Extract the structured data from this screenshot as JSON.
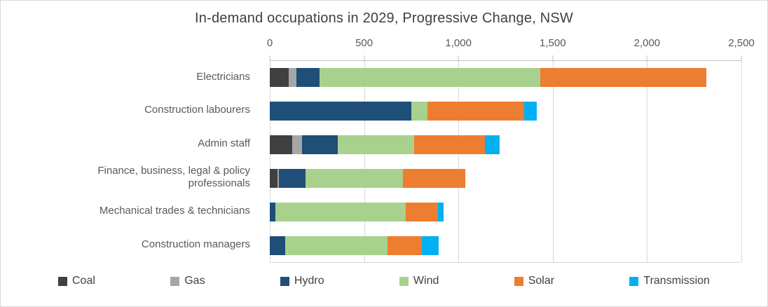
{
  "chart_data": {
    "type": "bar",
    "orientation": "horizontal",
    "stacked": true,
    "title": "In-demand occupations in 2029, Progressive Change, NSW",
    "categories": [
      "Electricians",
      "Construction labourers",
      "Admin staff",
      "Finance, business, legal & policy professionals",
      "Mechanical trades & technicians",
      "Construction managers"
    ],
    "series": [
      {
        "name": "Coal",
        "color": "#404040",
        "values": [
          100,
          0,
          120,
          40,
          0,
          0
        ]
      },
      {
        "name": "Gas",
        "color": "#a6a6a6",
        "values": [
          40,
          0,
          50,
          10,
          0,
          0
        ]
      },
      {
        "name": "Hydro",
        "color": "#1f4e79",
        "values": [
          125,
          750,
          190,
          140,
          30,
          80
        ]
      },
      {
        "name": "Wind",
        "color": "#a9d18e",
        "values": [
          1170,
          85,
          405,
          515,
          690,
          545
        ]
      },
      {
        "name": "Solar",
        "color": "#ed7d31",
        "values": [
          880,
          515,
          375,
          330,
          170,
          180
        ]
      },
      {
        "name": "Transmission",
        "color": "#00b0f0",
        "values": [
          0,
          65,
          80,
          0,
          30,
          90
        ]
      }
    ],
    "category_totals": [
      2315,
      1415,
      1220,
      1035,
      920,
      895
    ],
    "xlabel": "",
    "ylabel": "",
    "xlim": [
      0,
      2500
    ],
    "x_tick_values": [
      0,
      500,
      1000,
      1500,
      2000,
      2500
    ],
    "x_tick_labels": [
      "0",
      "500",
      "1,000",
      "1,500",
      "2,000",
      "2,500"
    ],
    "grid": true,
    "legend_position": "bottom",
    "grid_color": "#d9d9d9",
    "axis_text_color": "#595959",
    "title_color": "#404040"
  }
}
